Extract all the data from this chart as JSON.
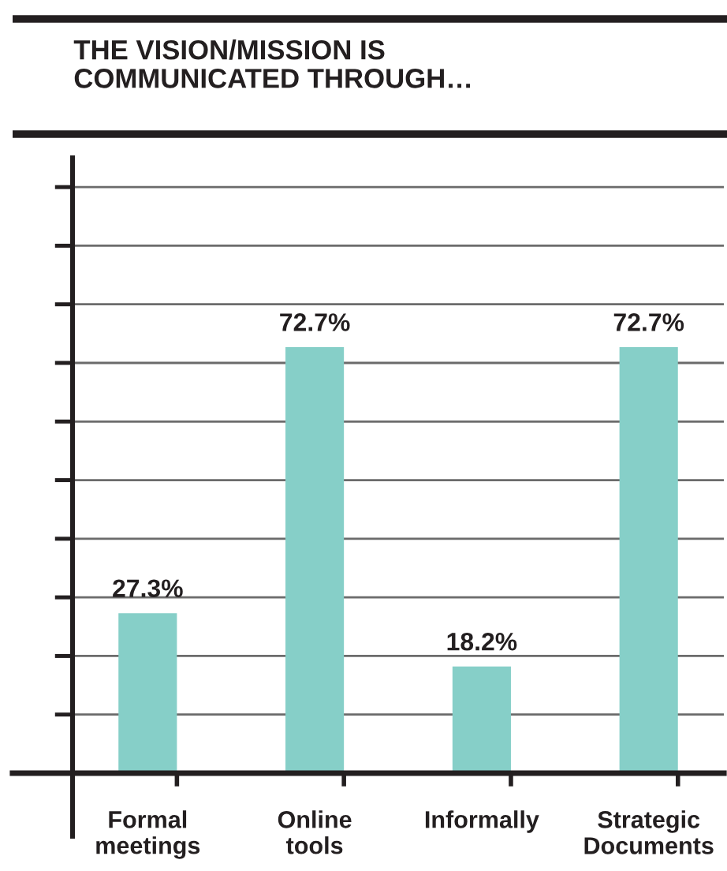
{
  "chart_data": {
    "type": "bar",
    "title": "THE VISION/MISSION IS COMMUNICATED THROUGH…",
    "categories": [
      "Formal meetings",
      "Online tools",
      "Informally",
      "Strategic Documents"
    ],
    "values": [
      27.3,
      72.7,
      18.2,
      72.7
    ],
    "color": "#86cfc8",
    "value_labels": [
      "27.3%",
      "72.7%",
      "18.2%",
      "72.7%"
    ],
    "ylim": [
      0,
      105
    ],
    "yticks": [
      {
        "value": 10,
        "label": null
      },
      {
        "value": 20,
        "label": null
      },
      {
        "value": 30,
        "label": null
      },
      {
        "value": 40,
        "label": null
      },
      {
        "value": 50,
        "label": null
      },
      {
        "value": 60,
        "label": null
      },
      {
        "value": 70,
        "label": null
      },
      {
        "value": 80,
        "label": null
      },
      {
        "value": 90,
        "label": null
      },
      {
        "value": 100,
        "label": null
      }
    ],
    "grid": "y",
    "tick_labels": "x"
  }
}
